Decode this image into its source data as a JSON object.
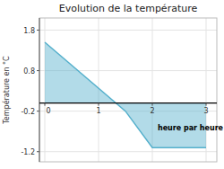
{
  "chart_data": {
    "type": "area",
    "title": "Evolution de la température",
    "ylabel": "Température en °C",
    "x": [
      0,
      1.5,
      2.0,
      3.0
    ],
    "values": [
      1.5,
      -0.2,
      -1.1,
      -1.1
    ],
    "color": "#55b0cc",
    "xlim": [
      -0.1,
      3.2
    ],
    "ylim": [
      -1.45,
      2.1
    ],
    "xticks": [
      0,
      1,
      2,
      3
    ],
    "yticks": [
      -1.2,
      -0.2,
      0.8,
      1.8
    ],
    "grid": true,
    "annotations": [
      {
        "text": "heure par heure",
        "x": 2.1,
        "y": -0.62
      }
    ]
  }
}
